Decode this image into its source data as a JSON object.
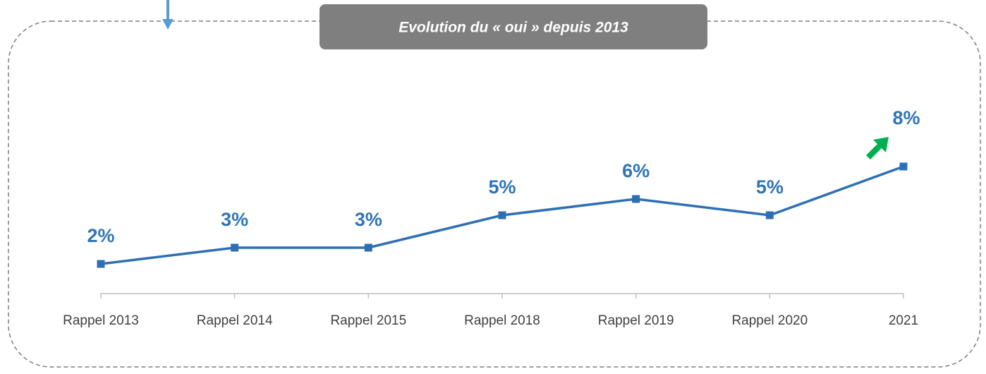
{
  "chart_data": {
    "type": "line",
    "title": "Evolution du « oui » depuis 2013",
    "categories": [
      "Rappel 2013",
      "Rappel 2014",
      "Rappel 2015",
      "Rappel 2018",
      "Rappel 2019",
      "Rappel 2020",
      "2021"
    ],
    "series": [
      {
        "name": "oui",
        "color": "#2e6fb4",
        "values": [
          2,
          3,
          3,
          5,
          6,
          5,
          8
        ],
        "value_labels": [
          "2%",
          "3%",
          "3%",
          "5%",
          "6%",
          "5%",
          "8%"
        ]
      }
    ]
  }
}
